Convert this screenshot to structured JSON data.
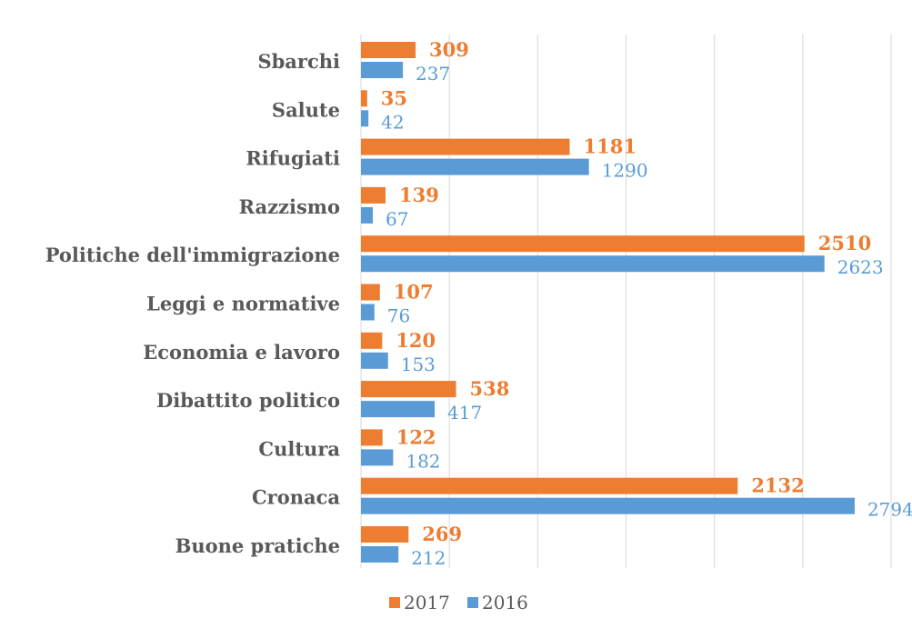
{
  "chart_data": {
    "type": "bar",
    "orientation": "horizontal",
    "categories": [
      "Sbarchi",
      "Salute",
      "Rifugiati",
      "Razzismo",
      "Politiche dell'immigrazione",
      "Leggi e normative",
      "Economia e lavoro",
      "Dibattito politico",
      "Cultura",
      "Cronaca",
      "Buone pratiche"
    ],
    "series": [
      {
        "name": "2017",
        "color": "#ED7D31",
        "values": [
          309,
          35,
          1181,
          139,
          2510,
          107,
          120,
          538,
          122,
          2132,
          269
        ]
      },
      {
        "name": "2016",
        "color": "#5B9BD5",
        "values": [
          237,
          42,
          1290,
          67,
          2623,
          76,
          153,
          417,
          182,
          2794,
          212
        ]
      }
    ],
    "xlim": [
      0,
      3000
    ],
    "grid": true,
    "legend": "bottom"
  }
}
